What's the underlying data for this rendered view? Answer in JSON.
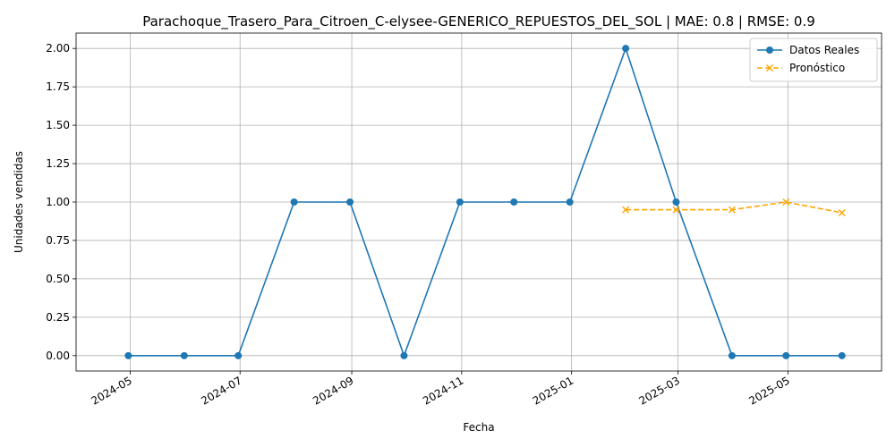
{
  "chart_data": {
    "type": "line",
    "title": "Parachoque_Trasero_Para_Citroen_C-elysee-GENERICO_REPUESTOS_DEL_SOL | MAE: 0.8 | RMSE: 0.9",
    "xlabel": "Fecha",
    "ylabel": "Unidades vendidas",
    "grid": true,
    "legend_position": "top-right",
    "xlim": [
      "2024-04-01",
      "2025-06-22"
    ],
    "ylim": [
      -0.1,
      2.1
    ],
    "x_ticks": [
      "2024-05",
      "2024-07",
      "2024-09",
      "2024-11",
      "2025-01",
      "2025-03",
      "2025-05"
    ],
    "y_ticks": [
      "0.00",
      "0.25",
      "0.50",
      "0.75",
      "1.00",
      "1.25",
      "1.50",
      "1.75",
      "2.00"
    ],
    "series": [
      {
        "name": "Datos Reales",
        "color": "#1f77b4",
        "style": "solid",
        "marker": "circle",
        "x": [
          "2024-04-30",
          "2024-05-31",
          "2024-06-30",
          "2024-07-31",
          "2024-08-31",
          "2024-09-30",
          "2024-10-31",
          "2024-11-30",
          "2024-12-31",
          "2025-01-31",
          "2025-02-28",
          "2025-03-31",
          "2025-04-30",
          "2025-05-31"
        ],
        "values": [
          0,
          0,
          0,
          1,
          1,
          0,
          1,
          1,
          1,
          2,
          1,
          0,
          0,
          0
        ]
      },
      {
        "name": "Pronóstico",
        "color": "#ffa500",
        "style": "dashed",
        "marker": "x",
        "x": [
          "2025-01-31",
          "2025-02-28",
          "2025-03-31",
          "2025-04-30",
          "2025-05-31"
        ],
        "values": [
          0.95,
          0.95,
          0.95,
          1.0,
          0.93
        ]
      }
    ]
  }
}
